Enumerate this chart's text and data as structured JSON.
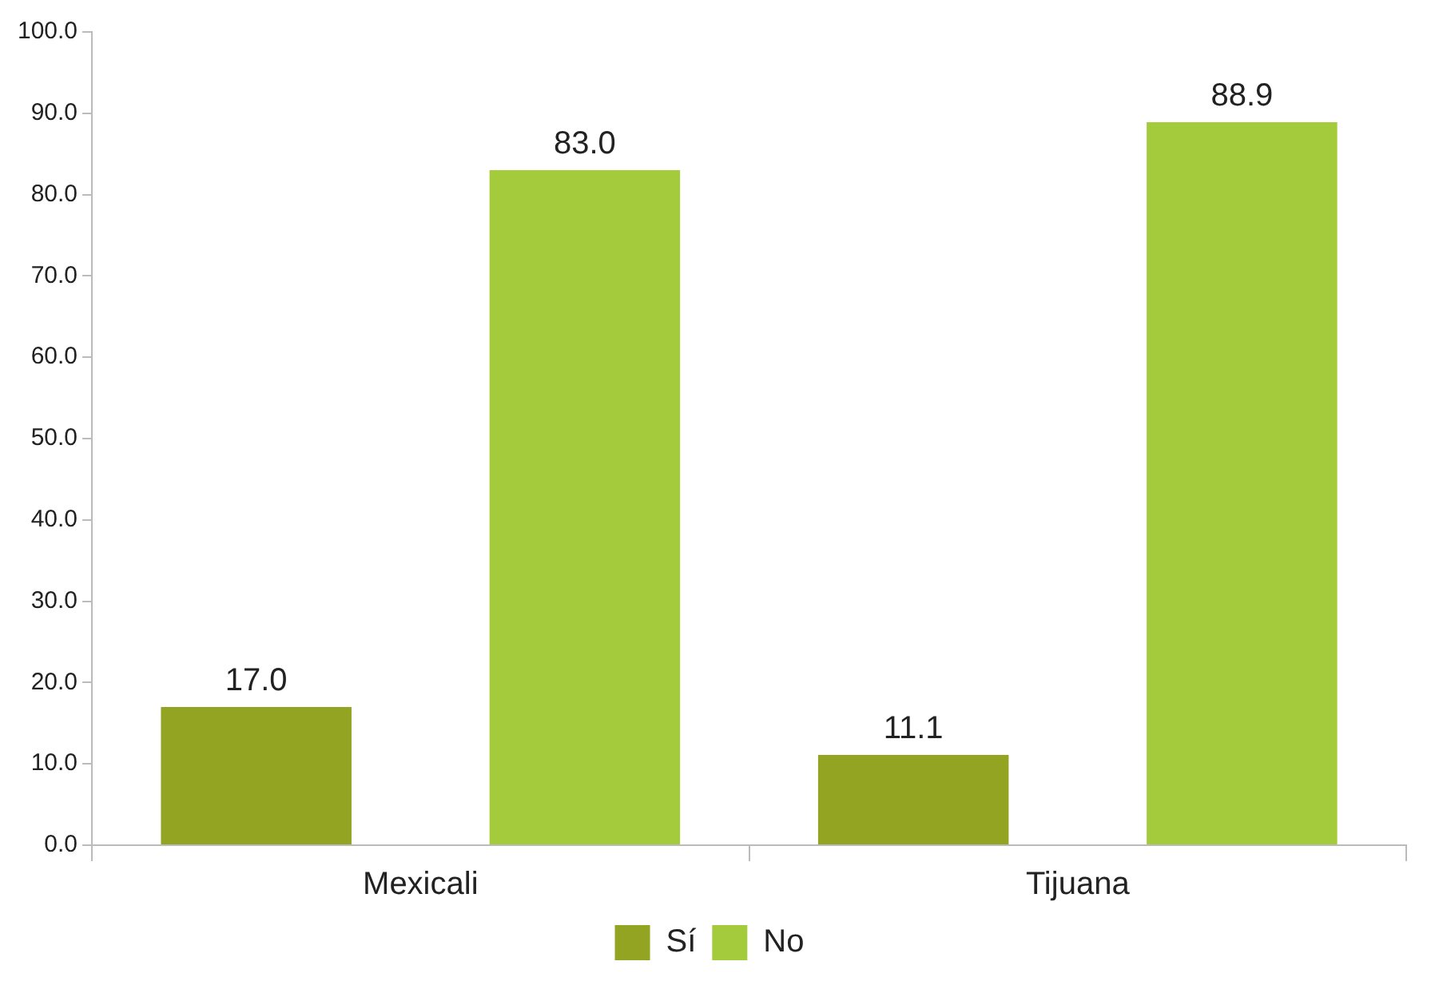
{
  "chart_data": {
    "type": "bar",
    "categories": [
      "Mexicali",
      "Tijuana"
    ],
    "series": [
      {
        "name": "Sí",
        "color": "#93a322",
        "values": [
          17.0,
          11.1
        ],
        "value_labels": [
          "17.0",
          "11.1"
        ]
      },
      {
        "name": "No",
        "color": "#a3cb3b",
        "values": [
          83.0,
          88.9
        ],
        "value_labels": [
          "83.0",
          "88.9"
        ]
      }
    ],
    "ylim": [
      0,
      100
    ],
    "yticks": [
      {
        "value": 0,
        "label": "0.0"
      },
      {
        "value": 10,
        "label": "10.0"
      },
      {
        "value": 20,
        "label": "20.0"
      },
      {
        "value": 30,
        "label": "30.0"
      },
      {
        "value": 40,
        "label": "40.0"
      },
      {
        "value": 50,
        "label": "50.0"
      },
      {
        "value": 60,
        "label": "60.0"
      },
      {
        "value": 70,
        "label": "70.0"
      },
      {
        "value": 80,
        "label": "80.0"
      },
      {
        "value": 90,
        "label": "90.0"
      },
      {
        "value": 100,
        "label": "100.0"
      }
    ],
    "grid": false,
    "legend": "bottom"
  }
}
